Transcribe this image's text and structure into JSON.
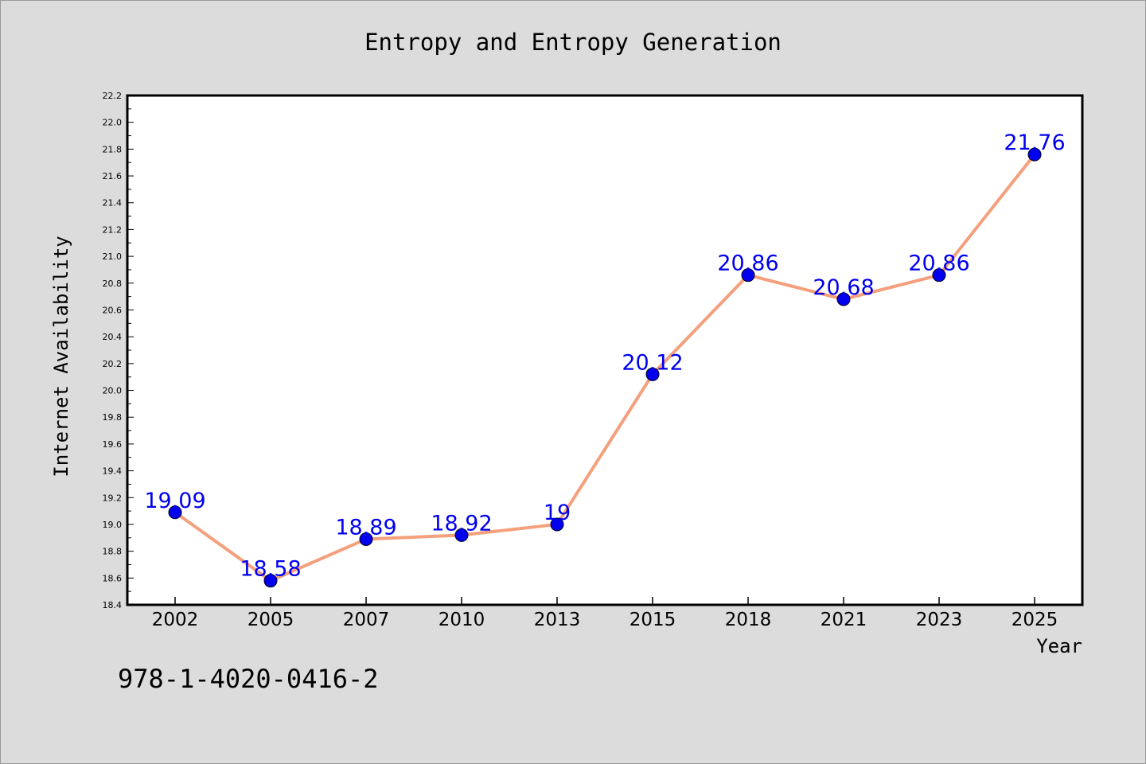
{
  "chart_data": {
    "type": "line",
    "title": "Entropy and Entropy Generation",
    "xlabel": "Year",
    "ylabel": "Internet Availability",
    "categories": [
      "2002",
      "2005",
      "2007",
      "2010",
      "2013",
      "2015",
      "2018",
      "2021",
      "2023",
      "2025"
    ],
    "values": [
      19.09,
      18.58,
      18.89,
      18.92,
      19.0,
      20.12,
      20.86,
      20.68,
      20.86,
      21.76
    ],
    "data_labels": [
      "19.09",
      "18.58",
      "18.89",
      "18.92",
      "19",
      "20.12",
      "20.86",
      "20.68",
      "20.86",
      "21.76"
    ],
    "ylim": [
      18.4,
      22.2
    ],
    "yticks": [
      "18.4",
      "18.6",
      "18.8",
      "19.0",
      "19.2",
      "19.4",
      "19.6",
      "19.8",
      "20.0",
      "20.2",
      "20.4",
      "20.6",
      "20.8",
      "21.0",
      "21.2",
      "21.4",
      "21.6",
      "21.8",
      "22.0",
      "22.2"
    ],
    "grid": false,
    "legend": "none",
    "line_color": "#f4a07c",
    "marker_color": "#0000ee",
    "label_color": "#0000ee"
  },
  "footer_text": "978-1-4020-0416-2"
}
